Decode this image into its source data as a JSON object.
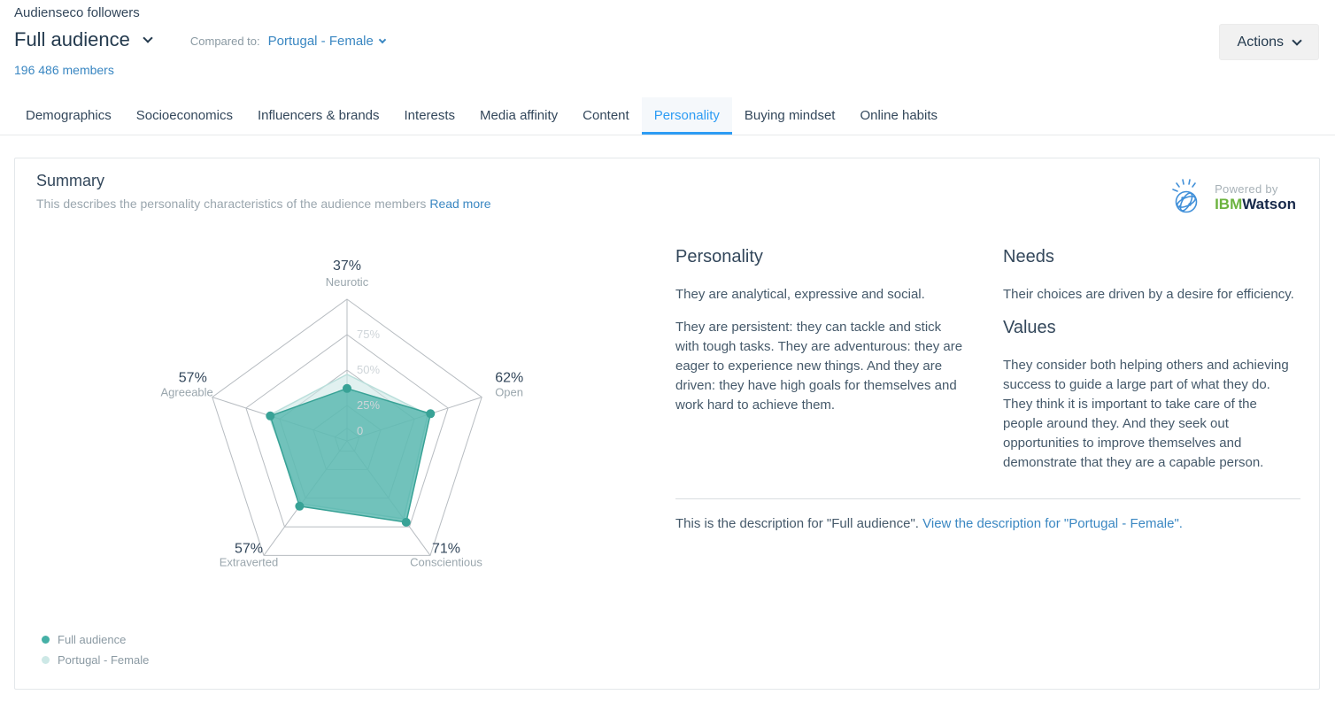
{
  "header": {
    "app_subtitle": "Audienseco followers",
    "audience": "Full audience",
    "compared_label": "Compared to:",
    "compared_value": "Portugal - Female",
    "members": "196 486 members",
    "actions": "Actions"
  },
  "tabs": [
    {
      "label": "Demographics",
      "active": false
    },
    {
      "label": "Socioeconomics",
      "active": false
    },
    {
      "label": "Influencers & brands",
      "active": false
    },
    {
      "label": "Interests",
      "active": false
    },
    {
      "label": "Media affinity",
      "active": false
    },
    {
      "label": "Content",
      "active": false
    },
    {
      "label": "Personality",
      "active": true
    },
    {
      "label": "Buying mindset",
      "active": false
    },
    {
      "label": "Online habits",
      "active": false
    }
  ],
  "card": {
    "title": "Summary",
    "subtitle": "This describes the personality characteristics of the audience members",
    "read_more": "Read more",
    "watson": {
      "powered_by": "Powered by",
      "ibm": "IBM",
      "watson": "Watson"
    }
  },
  "chart_data": {
    "type": "radar",
    "categories": [
      "Neurotic",
      "Open",
      "Conscientious",
      "Extraverted",
      "Agreeable"
    ],
    "axis_value_labels": [
      "37%",
      "62%",
      "71%",
      "57%",
      "57%"
    ],
    "tick_labels": [
      "75%",
      "50%",
      "25%",
      "0"
    ],
    "scale_max": 100,
    "grid_color": "#b7bcc1",
    "series": [
      {
        "name": "Full audience",
        "values": [
          37,
          62,
          71,
          57,
          57
        ],
        "color": "#45b0a6",
        "stroke": "#38a296",
        "fill_opacity": 0.72
      },
      {
        "name": "Portugal - Female",
        "values": [
          47,
          60,
          68,
          55,
          58
        ],
        "color": "#cde8e6",
        "stroke": "#badfdb",
        "fill_opacity": 0.6,
        "values_estimated": true
      }
    ],
    "legend_position": "bottom-left"
  },
  "sections": {
    "personality": {
      "title": "Personality",
      "p1": "They are analytical, expressive and social.",
      "p2": "They are persistent: they can tackle and stick with tough tasks. They are adventurous: they are eager to experience new things. And they are driven: they have high goals for themselves and work hard to achieve them."
    },
    "needs": {
      "title": "Needs",
      "p1": "Their choices are driven by a desire for efficiency."
    },
    "values": {
      "title": "Values",
      "p1": "They consider both helping others and achieving success to guide a large part of what they do. They think it is important to take care of the people around they. And they seek out opportunities to improve themselves and demonstrate that they are a capable person."
    }
  },
  "footer": {
    "text": "This is the description for \"Full audience\".",
    "link_label": "View the description for \"Portugal - Female\"."
  }
}
